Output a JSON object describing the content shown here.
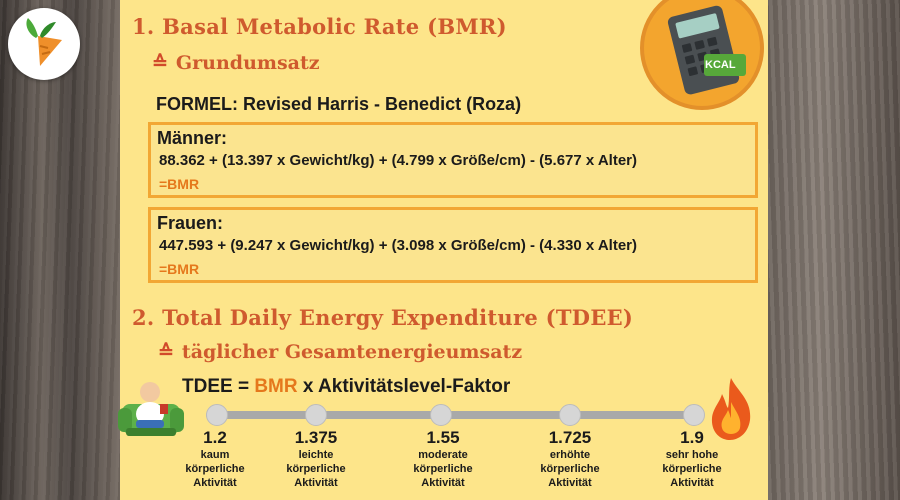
{
  "section1": {
    "title": "1. Basal Metabolic Rate (BMR)",
    "symbol": "≙",
    "subtitle": "Grundumsatz",
    "formula_title": "FORMEL: Revised Harris - Benedict (Roza)"
  },
  "calculator": {
    "badge": "KCAL"
  },
  "men": {
    "label": "Männer:",
    "equation": "88.362 + (13.397 x Gewicht/kg) + (4.799 x Größe/cm) - (5.677 x Alter)",
    "result": "=BMR"
  },
  "women": {
    "label": "Frauen:",
    "equation": "447.593 + (9.247 x Gewicht/kg) + (3.098 x Größe/cm) - (4.330 x Alter)",
    "result": "=BMR"
  },
  "section2": {
    "title": "2. Total Daily Energy Expenditure (TDEE)",
    "symbol": "≙",
    "subtitle": "täglicher Gesamtenergieumsatz",
    "formula_prefix": "TDEE = ",
    "formula_bmr": "BMR",
    "formula_suffix": " x Aktivitätslevel-Faktor"
  },
  "factors": [
    {
      "value": "1.2",
      "l1": "kaum",
      "l2": "körperliche",
      "l3": "Aktivität"
    },
    {
      "value": "1.375",
      "l1": "leichte",
      "l2": "körperliche",
      "l3": "Aktivität"
    },
    {
      "value": "1.55",
      "l1": "moderate",
      "l2": "körperliche",
      "l3": "Aktivität"
    },
    {
      "value": "1.725",
      "l1": "erhöhte",
      "l2": "körperliche",
      "l3": "Aktivität"
    },
    {
      "value": "1.9",
      "l1": "sehr hohe",
      "l2": "körperliche",
      "l3": "Aktivität"
    }
  ],
  "colors": {
    "panel": "#fde58a",
    "heading": "#cf5a2e",
    "accent": "#e5781c",
    "box_border": "#f2a734"
  },
  "icons": [
    "carrot-logo-icon",
    "calculator-icon",
    "couch-potato-icon",
    "flame-icon"
  ]
}
